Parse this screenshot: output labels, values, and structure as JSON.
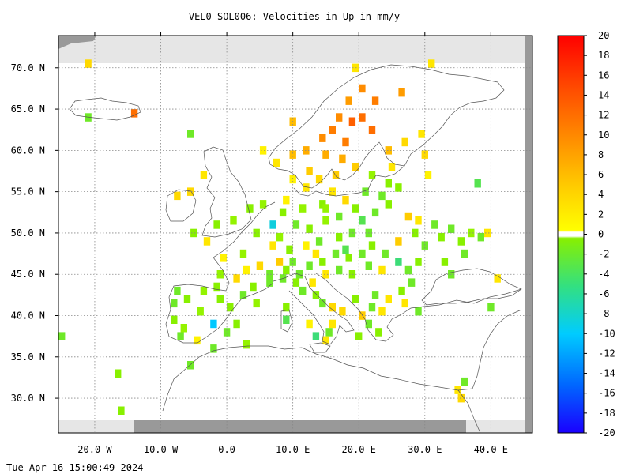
{
  "title": "VEL0-SOL006: Velocities in Up in mm/y",
  "timestamp": "Tue Apr 16 15:00:49 2024",
  "map": {
    "lon_range": [
      -25.5,
      46.3
    ],
    "lat_range": [
      25.8,
      73.9
    ],
    "lat_ticks": [
      {
        "value": 70,
        "label": "70.0 N"
      },
      {
        "value": 65,
        "label": "65.0 N"
      },
      {
        "value": 60,
        "label": "60.0 N"
      },
      {
        "value": 55,
        "label": "55.0 N"
      },
      {
        "value": 50,
        "label": "50.0 N"
      },
      {
        "value": 45,
        "label": "45.0 N"
      },
      {
        "value": 40,
        "label": "40.0 N"
      },
      {
        "value": 35,
        "label": "35.0 N"
      },
      {
        "value": 30,
        "label": "30.0 N"
      }
    ],
    "lon_ticks": [
      {
        "value": -20,
        "label": "20.0 W"
      },
      {
        "value": -10,
        "label": "10.0 W"
      },
      {
        "value": 0,
        "label": "0.0"
      },
      {
        "value": 10,
        "label": "10.0 E"
      },
      {
        "value": 20,
        "label": "20.0 E"
      },
      {
        "value": 30,
        "label": "30.0 E"
      },
      {
        "value": 40,
        "label": "40.0 E"
      }
    ],
    "cells": [
      {
        "lon": -21.0,
        "lat": 70.5,
        "v": 3
      },
      {
        "lon": -21.0,
        "lat": 64.0,
        "v": -3
      },
      {
        "lon": -14.0,
        "lat": 64.5,
        "v": 10
      },
      {
        "lon": -5.5,
        "lat": 62.0,
        "v": -3
      },
      {
        "lon": -3.5,
        "lat": 57.0,
        "v": 2
      },
      {
        "lon": -7.5,
        "lat": 54.5,
        "v": 3
      },
      {
        "lon": -5.5,
        "lat": 55.0,
        "v": 3
      },
      {
        "lon": -1.5,
        "lat": 51.0,
        "v": -2
      },
      {
        "lon": -5.0,
        "lat": 50.0,
        "v": -2
      },
      {
        "lon": -3.0,
        "lat": 49.0,
        "v": 2
      },
      {
        "lon": 1.0,
        "lat": 51.5,
        "v": -1
      },
      {
        "lon": 3.5,
        "lat": 53.0,
        "v": -2
      },
      {
        "lon": 5.5,
        "lat": 53.5,
        "v": -1
      },
      {
        "lon": 7.0,
        "lat": 51.0,
        "v": -8
      },
      {
        "lon": 8.0,
        "lat": 49.5,
        "v": -1
      },
      {
        "lon": 7.0,
        "lat": 48.5,
        "v": 2
      },
      {
        "lon": 4.5,
        "lat": 50.0,
        "v": -2
      },
      {
        "lon": 2.5,
        "lat": 47.5,
        "v": -1
      },
      {
        "lon": -0.5,
        "lat": 47.0,
        "v": 1
      },
      {
        "lon": 1.5,
        "lat": 44.5,
        "v": 3
      },
      {
        "lon": 4.0,
        "lat": 43.5,
        "v": -2
      },
      {
        "lon": 6.5,
        "lat": 44.0,
        "v": -3
      },
      {
        "lon": -7.5,
        "lat": 43.0,
        "v": -3
      },
      {
        "lon": -6.0,
        "lat": 42.0,
        "v": -2
      },
      {
        "lon": -3.5,
        "lat": 43.0,
        "v": -1
      },
      {
        "lon": -1.0,
        "lat": 42.0,
        "v": -2
      },
      {
        "lon": 0.5,
        "lat": 41.0,
        "v": -2
      },
      {
        "lon": -8.0,
        "lat": 41.5,
        "v": -3
      },
      {
        "lon": -8.0,
        "lat": 39.5,
        "v": -2
      },
      {
        "lon": -7.0,
        "lat": 37.5,
        "v": -3
      },
      {
        "lon": -4.5,
        "lat": 37.0,
        "v": 1
      },
      {
        "lon": -2.0,
        "lat": 39.0,
        "v": -9
      },
      {
        "lon": -2.0,
        "lat": 36.0,
        "v": -3
      },
      {
        "lon": 1.5,
        "lat": 39.0,
        "v": -2
      },
      {
        "lon": -5.5,
        "lat": 34.0,
        "v": -3
      },
      {
        "lon": -16.5,
        "lat": 33.0,
        "v": -2
      },
      {
        "lon": -16.0,
        "lat": 28.5,
        "v": -2
      },
      {
        "lon": -25.0,
        "lat": 37.5,
        "v": -3
      },
      {
        "lon": 10.0,
        "lat": 63.5,
        "v": 5
      },
      {
        "lon": 12.0,
        "lat": 60.0,
        "v": 6
      },
      {
        "lon": 10.0,
        "lat": 59.5,
        "v": 5
      },
      {
        "lon": 14.5,
        "lat": 61.5,
        "v": 8
      },
      {
        "lon": 16.0,
        "lat": 62.5,
        "v": 9
      },
      {
        "lon": 17.0,
        "lat": 64.0,
        "v": 8
      },
      {
        "lon": 18.5,
        "lat": 66.0,
        "v": 7
      },
      {
        "lon": 20.5,
        "lat": 67.5,
        "v": 8
      },
      {
        "lon": 22.5,
        "lat": 66.0,
        "v": 9
      },
      {
        "lon": 20.5,
        "lat": 64.0,
        "v": 10
      },
      {
        "lon": 19.0,
        "lat": 63.5,
        "v": 11
      },
      {
        "lon": 22.0,
        "lat": 62.5,
        "v": 10
      },
      {
        "lon": 26.5,
        "lat": 67.0,
        "v": 7
      },
      {
        "lon": 18.0,
        "lat": 61.0,
        "v": 9
      },
      {
        "lon": 15.0,
        "lat": 59.5,
        "v": 6
      },
      {
        "lon": 17.5,
        "lat": 59.0,
        "v": 6
      },
      {
        "lon": 12.5,
        "lat": 57.5,
        "v": 4
      },
      {
        "lon": 14.0,
        "lat": 56.5,
        "v": 3
      },
      {
        "lon": 16.5,
        "lat": 57.0,
        "v": 4
      },
      {
        "lon": 19.5,
        "lat": 58.0,
        "v": 4
      },
      {
        "lon": 24.5,
        "lat": 60.0,
        "v": 5
      },
      {
        "lon": 27.0,
        "lat": 61.0,
        "v": 3
      },
      {
        "lon": 29.5,
        "lat": 62.0,
        "v": 2
      },
      {
        "lon": 30.0,
        "lat": 59.5,
        "v": 3
      },
      {
        "lon": 25.0,
        "lat": 58.0,
        "v": 2
      },
      {
        "lon": 22.0,
        "lat": 57.0,
        "v": -1
      },
      {
        "lon": 19.5,
        "lat": 70.0,
        "v": 2
      },
      {
        "lon": 31.0,
        "lat": 70.5,
        "v": 2
      },
      {
        "lon": 30.5,
        "lat": 57.0,
        "v": 1
      },
      {
        "lon": 38.0,
        "lat": 56.0,
        "v": -4
      },
      {
        "lon": 24.5,
        "lat": 56.0,
        "v": -2
      },
      {
        "lon": 21.0,
        "lat": 55.0,
        "v": -3
      },
      {
        "lon": 18.0,
        "lat": 54.0,
        "v": 3
      },
      {
        "lon": 14.5,
        "lat": 53.5,
        "v": -2
      },
      {
        "lon": 11.5,
        "lat": 53.0,
        "v": -1
      },
      {
        "lon": 9.0,
        "lat": 54.0,
        "v": 1
      },
      {
        "lon": 8.5,
        "lat": 52.5,
        "v": -2
      },
      {
        "lon": 10.5,
        "lat": 51.0,
        "v": -3
      },
      {
        "lon": 12.5,
        "lat": 50.5,
        "v": -2
      },
      {
        "lon": 15.0,
        "lat": 51.5,
        "v": -1
      },
      {
        "lon": 17.0,
        "lat": 52.0,
        "v": -3
      },
      {
        "lon": 19.5,
        "lat": 53.0,
        "v": -2
      },
      {
        "lon": 20.5,
        "lat": 51.5,
        "v": -4
      },
      {
        "lon": 22.5,
        "lat": 52.5,
        "v": -3
      },
      {
        "lon": 24.5,
        "lat": 53.5,
        "v": -2
      },
      {
        "lon": 19.0,
        "lat": 50.0,
        "v": -3
      },
      {
        "lon": 17.0,
        "lat": 49.5,
        "v": -2
      },
      {
        "lon": 14.0,
        "lat": 49.0,
        "v": -3
      },
      {
        "lon": 12.0,
        "lat": 48.5,
        "v": 1
      },
      {
        "lon": 9.5,
        "lat": 48.0,
        "v": -2
      },
      {
        "lon": 8.0,
        "lat": 46.5,
        "v": 4
      },
      {
        "lon": 10.0,
        "lat": 46.5,
        "v": -3
      },
      {
        "lon": 12.5,
        "lat": 46.0,
        "v": -3
      },
      {
        "lon": 14.5,
        "lat": 46.5,
        "v": -2
      },
      {
        "lon": 16.5,
        "lat": 47.5,
        "v": -3
      },
      {
        "lon": 18.5,
        "lat": 47.0,
        "v": -2
      },
      {
        "lon": 20.5,
        "lat": 47.5,
        "v": -3
      },
      {
        "lon": 22.0,
        "lat": 48.5,
        "v": -2
      },
      {
        "lon": 24.0,
        "lat": 47.5,
        "v": -3
      },
      {
        "lon": 26.0,
        "lat": 46.5,
        "v": -5
      },
      {
        "lon": 27.5,
        "lat": 45.5,
        "v": -3
      },
      {
        "lon": 23.5,
        "lat": 45.5,
        "v": 2
      },
      {
        "lon": 21.5,
        "lat": 46.0,
        "v": -3
      },
      {
        "lon": 19.0,
        "lat": 45.0,
        "v": -2
      },
      {
        "lon": 17.0,
        "lat": 45.5,
        "v": -3
      },
      {
        "lon": 15.0,
        "lat": 45.0,
        "v": 2
      },
      {
        "lon": 9.0,
        "lat": 45.5,
        "v": -2
      },
      {
        "lon": 11.0,
        "lat": 45.0,
        "v": -3
      },
      {
        "lon": 13.0,
        "lat": 44.0,
        "v": 2
      },
      {
        "lon": 10.5,
        "lat": 44.0,
        "v": -2
      },
      {
        "lon": 8.5,
        "lat": 44.5,
        "v": -3
      },
      {
        "lon": 11.5,
        "lat": 43.0,
        "v": -3
      },
      {
        "lon": 13.5,
        "lat": 42.5,
        "v": -2
      },
      {
        "lon": 14.5,
        "lat": 41.5,
        "v": -3
      },
      {
        "lon": 16.0,
        "lat": 41.0,
        "v": 3
      },
      {
        "lon": 17.5,
        "lat": 40.5,
        "v": 3
      },
      {
        "lon": 16.0,
        "lat": 39.0,
        "v": 2
      },
      {
        "lon": 15.5,
        "lat": 38.0,
        "v": -3
      },
      {
        "lon": 13.5,
        "lat": 37.5,
        "v": -5
      },
      {
        "lon": 15.0,
        "lat": 37.0,
        "v": 2
      },
      {
        "lon": 9.0,
        "lat": 39.5,
        "v": -4
      },
      {
        "lon": 9.0,
        "lat": 41.0,
        "v": -2
      },
      {
        "lon": 12.5,
        "lat": 39.0,
        "v": 1
      },
      {
        "lon": 19.5,
        "lat": 42.0,
        "v": -2
      },
      {
        "lon": 20.5,
        "lat": 40.0,
        "v": 4
      },
      {
        "lon": 22.0,
        "lat": 41.0,
        "v": -3
      },
      {
        "lon": 23.5,
        "lat": 40.5,
        "v": 2
      },
      {
        "lon": 21.5,
        "lat": 39.0,
        "v": -3
      },
      {
        "lon": 23.0,
        "lat": 38.0,
        "v": -2
      },
      {
        "lon": 22.5,
        "lat": 42.5,
        "v": -3
      },
      {
        "lon": 24.5,
        "lat": 42.0,
        "v": 2
      },
      {
        "lon": 26.5,
        "lat": 43.0,
        "v": -2
      },
      {
        "lon": 28.0,
        "lat": 44.0,
        "v": -3
      },
      {
        "lon": 29.0,
        "lat": 46.5,
        "v": -2
      },
      {
        "lon": 30.0,
        "lat": 48.5,
        "v": -3
      },
      {
        "lon": 28.5,
        "lat": 50.0,
        "v": -2
      },
      {
        "lon": 29.0,
        "lat": 51.5,
        "v": 2
      },
      {
        "lon": 27.5,
        "lat": 52.0,
        "v": 4
      },
      {
        "lon": 26.0,
        "lat": 49.0,
        "v": 4
      },
      {
        "lon": 31.5,
        "lat": 51.0,
        "v": -3
      },
      {
        "lon": 32.5,
        "lat": 49.5,
        "v": -2
      },
      {
        "lon": 34.0,
        "lat": 50.5,
        "v": -3
      },
      {
        "lon": 35.5,
        "lat": 49.0,
        "v": -2
      },
      {
        "lon": 37.0,
        "lat": 50.0,
        "v": -1
      },
      {
        "lon": 38.5,
        "lat": 49.5,
        "v": -3
      },
      {
        "lon": 39.5,
        "lat": 50.0,
        "v": 2
      },
      {
        "lon": 36.0,
        "lat": 47.5,
        "v": -3
      },
      {
        "lon": 33.0,
        "lat": 46.5,
        "v": -2
      },
      {
        "lon": 34.0,
        "lat": 45.0,
        "v": -3
      },
      {
        "lon": 41.0,
        "lat": 44.5,
        "v": 2
      },
      {
        "lon": 40.0,
        "lat": 41.0,
        "v": -3
      },
      {
        "lon": 35.0,
        "lat": 31.0,
        "v": 2
      },
      {
        "lon": 36.0,
        "lat": 32.0,
        "v": -3
      },
      {
        "lon": 35.5,
        "lat": 30.0,
        "v": 3
      },
      {
        "lon": 29.0,
        "lat": 40.5,
        "v": -3
      },
      {
        "lon": 27.0,
        "lat": 41.5,
        "v": 2
      },
      {
        "lon": 20.0,
        "lat": 37.5,
        "v": -2
      },
      {
        "lon": 15.0,
        "lat": 53.0,
        "v": -1
      },
      {
        "lon": 16.0,
        "lat": 55.0,
        "v": 2
      },
      {
        "lon": 12.0,
        "lat": 55.5,
        "v": 2
      },
      {
        "lon": 10.0,
        "lat": 56.5,
        "v": 1
      },
      {
        "lon": 5.5,
        "lat": 60.0,
        "v": 1
      },
      {
        "lon": 7.5,
        "lat": 58.5,
        "v": 2
      },
      {
        "lon": 23.5,
        "lat": 54.5,
        "v": -3
      },
      {
        "lon": 26.0,
        "lat": 55.5,
        "v": -2
      },
      {
        "lon": 21.5,
        "lat": 50.0,
        "v": -3
      },
      {
        "lon": 18.0,
        "lat": 48.0,
        "v": -4
      },
      {
        "lon": 13.5,
        "lat": 47.5,
        "v": 2
      },
      {
        "lon": 6.5,
        "lat": 45.0,
        "v": -3
      },
      {
        "lon": 5.0,
        "lat": 46.0,
        "v": 3
      },
      {
        "lon": 3.0,
        "lat": 45.5,
        "v": 1
      },
      {
        "lon": -1.0,
        "lat": 45.0,
        "v": -1
      },
      {
        "lon": -1.5,
        "lat": 43.5,
        "v": -2
      },
      {
        "lon": 2.5,
        "lat": 42.5,
        "v": -3
      },
      {
        "lon": 4.5,
        "lat": 41.5,
        "v": -1
      },
      {
        "lon": -4.0,
        "lat": 40.5,
        "v": -1
      },
      {
        "lon": -6.5,
        "lat": 38.5,
        "v": -1
      },
      {
        "lon": 0.0,
        "lat": 38.0,
        "v": -3
      },
      {
        "lon": 3.0,
        "lat": 36.5,
        "v": -1
      }
    ]
  },
  "colorbar": {
    "min": -20,
    "max": 20,
    "ticks": [
      {
        "value": 20,
        "label": "20"
      },
      {
        "value": 18,
        "label": "18"
      },
      {
        "value": 16,
        "label": "16"
      },
      {
        "value": 14,
        "label": "14"
      },
      {
        "value": 12,
        "label": "12"
      },
      {
        "value": 10,
        "label": "10"
      },
      {
        "value": 8,
        "label": "8"
      },
      {
        "value": 6,
        "label": "6"
      },
      {
        "value": 4,
        "label": "4"
      },
      {
        "value": 2,
        "label": "2"
      },
      {
        "value": 0,
        "label": "0"
      },
      {
        "value": -2,
        "label": "-2"
      },
      {
        "value": -4,
        "label": "-4"
      },
      {
        "value": -6,
        "label": "-6"
      },
      {
        "value": -8,
        "label": "-8"
      },
      {
        "value": -10,
        "label": "-10"
      },
      {
        "value": -12,
        "label": "-12"
      },
      {
        "value": -14,
        "label": "-14"
      },
      {
        "value": -16,
        "label": "-16"
      },
      {
        "value": -18,
        "label": "-18"
      },
      {
        "value": -20,
        "label": "-20"
      }
    ]
  },
  "colors": {
    "ocean": "#ffffff",
    "grid": "#888888",
    "border_gray": "#999999",
    "band_light_gray": "#e6e6e6",
    "coast": "#555555",
    "nodata_cell": "#e2e2e2"
  }
}
